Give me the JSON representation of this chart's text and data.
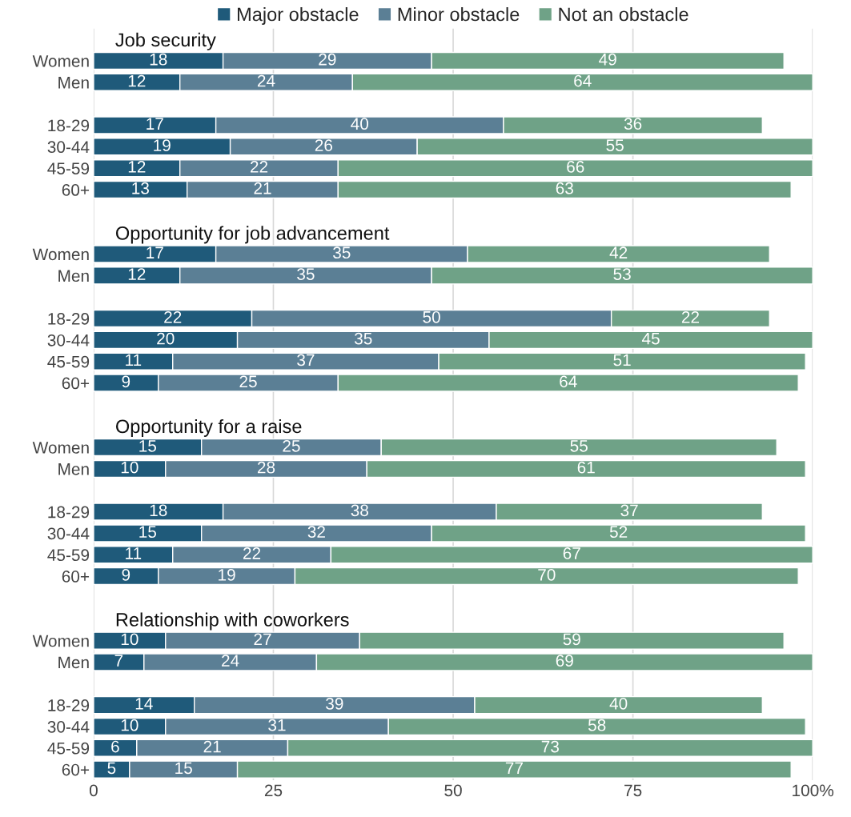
{
  "chart_data": {
    "type": "bar",
    "orientation": "horizontal",
    "stacked": true,
    "data_labels": true,
    "grid": "x",
    "legend": "top",
    "categories": [
      null,
      "Women",
      "Men",
      null,
      "18-29",
      "30-44",
      "45-59",
      "60+",
      null,
      null,
      "Women",
      "Men",
      null,
      "18-29",
      "30-44",
      "45-59",
      "60+",
      null,
      null,
      "Women",
      "Men",
      null,
      "18-29",
      "30-44",
      "45-59",
      "60+",
      null,
      null,
      "Women",
      "Men",
      null,
      "18-29",
      "30-44",
      "45-59",
      "60+"
    ],
    "annotations": [
      "Job security",
      "Opportunity for job advancement",
      "Opportunity for a raise",
      "Relationship with coworkers"
    ],
    "xlim": [
      0,
      100
    ],
    "xticks": [
      0,
      25,
      50,
      75,
      {
        "value": 100,
        "label": "100%"
      }
    ],
    "series": [
      {
        "name": "Major obstacle",
        "color": "#1f5a7a",
        "values": [
          null,
          18,
          12,
          null,
          17,
          19,
          12,
          13,
          null,
          null,
          17,
          12,
          null,
          22,
          20,
          11,
          9,
          null,
          null,
          15,
          10,
          null,
          18,
          15,
          11,
          9,
          null,
          null,
          10,
          7,
          null,
          14,
          10,
          6,
          5
        ]
      },
      {
        "name": "Minor obstacle",
        "color": "#5b7f95",
        "values": [
          null,
          29,
          24,
          null,
          40,
          26,
          22,
          21,
          null,
          null,
          35,
          35,
          null,
          50,
          35,
          37,
          25,
          null,
          null,
          25,
          28,
          null,
          38,
          32,
          22,
          19,
          null,
          null,
          27,
          24,
          null,
          39,
          31,
          21,
          15
        ]
      },
      {
        "name": "Not an obstacle",
        "color": "#6fa287",
        "values": [
          null,
          49,
          64,
          null,
          36,
          55,
          66,
          63,
          null,
          null,
          42,
          53,
          null,
          22,
          45,
          51,
          64,
          null,
          null,
          55,
          61,
          null,
          37,
          52,
          67,
          70,
          null,
          null,
          59,
          69,
          null,
          40,
          58,
          73,
          77
        ]
      }
    ]
  }
}
